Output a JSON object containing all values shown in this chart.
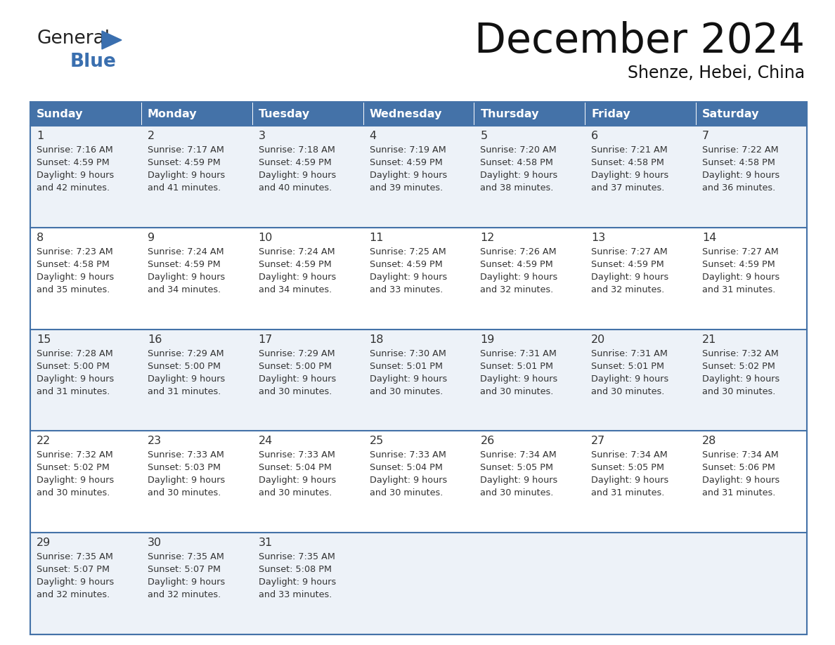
{
  "title": "December 2024",
  "subtitle": "Shenze, Hebei, China",
  "header_color": "#4472a8",
  "header_text_color": "#ffffff",
  "odd_row_bg": "#edf2f8",
  "even_row_bg": "#ffffff",
  "border_color": "#4472a8",
  "text_color": "#333333",
  "day_headers": [
    "Sunday",
    "Monday",
    "Tuesday",
    "Wednesday",
    "Thursday",
    "Friday",
    "Saturday"
  ],
  "calendar_data": [
    [
      {
        "day": 1,
        "sunrise": "7:16 AM",
        "sunset": "4:59 PM",
        "dl1": "Daylight: 9 hours",
        "dl2": "and 42 minutes."
      },
      {
        "day": 2,
        "sunrise": "7:17 AM",
        "sunset": "4:59 PM",
        "dl1": "Daylight: 9 hours",
        "dl2": "and 41 minutes."
      },
      {
        "day": 3,
        "sunrise": "7:18 AM",
        "sunset": "4:59 PM",
        "dl1": "Daylight: 9 hours",
        "dl2": "and 40 minutes."
      },
      {
        "day": 4,
        "sunrise": "7:19 AM",
        "sunset": "4:59 PM",
        "dl1": "Daylight: 9 hours",
        "dl2": "and 39 minutes."
      },
      {
        "day": 5,
        "sunrise": "7:20 AM",
        "sunset": "4:58 PM",
        "dl1": "Daylight: 9 hours",
        "dl2": "and 38 minutes."
      },
      {
        "day": 6,
        "sunrise": "7:21 AM",
        "sunset": "4:58 PM",
        "dl1": "Daylight: 9 hours",
        "dl2": "and 37 minutes."
      },
      {
        "day": 7,
        "sunrise": "7:22 AM",
        "sunset": "4:58 PM",
        "dl1": "Daylight: 9 hours",
        "dl2": "and 36 minutes."
      }
    ],
    [
      {
        "day": 8,
        "sunrise": "7:23 AM",
        "sunset": "4:58 PM",
        "dl1": "Daylight: 9 hours",
        "dl2": "and 35 minutes."
      },
      {
        "day": 9,
        "sunrise": "7:24 AM",
        "sunset": "4:59 PM",
        "dl1": "Daylight: 9 hours",
        "dl2": "and 34 minutes."
      },
      {
        "day": 10,
        "sunrise": "7:24 AM",
        "sunset": "4:59 PM",
        "dl1": "Daylight: 9 hours",
        "dl2": "and 34 minutes."
      },
      {
        "day": 11,
        "sunrise": "7:25 AM",
        "sunset": "4:59 PM",
        "dl1": "Daylight: 9 hours",
        "dl2": "and 33 minutes."
      },
      {
        "day": 12,
        "sunrise": "7:26 AM",
        "sunset": "4:59 PM",
        "dl1": "Daylight: 9 hours",
        "dl2": "and 32 minutes."
      },
      {
        "day": 13,
        "sunrise": "7:27 AM",
        "sunset": "4:59 PM",
        "dl1": "Daylight: 9 hours",
        "dl2": "and 32 minutes."
      },
      {
        "day": 14,
        "sunrise": "7:27 AM",
        "sunset": "4:59 PM",
        "dl1": "Daylight: 9 hours",
        "dl2": "and 31 minutes."
      }
    ],
    [
      {
        "day": 15,
        "sunrise": "7:28 AM",
        "sunset": "5:00 PM",
        "dl1": "Daylight: 9 hours",
        "dl2": "and 31 minutes."
      },
      {
        "day": 16,
        "sunrise": "7:29 AM",
        "sunset": "5:00 PM",
        "dl1": "Daylight: 9 hours",
        "dl2": "and 31 minutes."
      },
      {
        "day": 17,
        "sunrise": "7:29 AM",
        "sunset": "5:00 PM",
        "dl1": "Daylight: 9 hours",
        "dl2": "and 30 minutes."
      },
      {
        "day": 18,
        "sunrise": "7:30 AM",
        "sunset": "5:01 PM",
        "dl1": "Daylight: 9 hours",
        "dl2": "and 30 minutes."
      },
      {
        "day": 19,
        "sunrise": "7:31 AM",
        "sunset": "5:01 PM",
        "dl1": "Daylight: 9 hours",
        "dl2": "and 30 minutes."
      },
      {
        "day": 20,
        "sunrise": "7:31 AM",
        "sunset": "5:01 PM",
        "dl1": "Daylight: 9 hours",
        "dl2": "and 30 minutes."
      },
      {
        "day": 21,
        "sunrise": "7:32 AM",
        "sunset": "5:02 PM",
        "dl1": "Daylight: 9 hours",
        "dl2": "and 30 minutes."
      }
    ],
    [
      {
        "day": 22,
        "sunrise": "7:32 AM",
        "sunset": "5:02 PM",
        "dl1": "Daylight: 9 hours",
        "dl2": "and 30 minutes."
      },
      {
        "day": 23,
        "sunrise": "7:33 AM",
        "sunset": "5:03 PM",
        "dl1": "Daylight: 9 hours",
        "dl2": "and 30 minutes."
      },
      {
        "day": 24,
        "sunrise": "7:33 AM",
        "sunset": "5:04 PM",
        "dl1": "Daylight: 9 hours",
        "dl2": "and 30 minutes."
      },
      {
        "day": 25,
        "sunrise": "7:33 AM",
        "sunset": "5:04 PM",
        "dl1": "Daylight: 9 hours",
        "dl2": "and 30 minutes."
      },
      {
        "day": 26,
        "sunrise": "7:34 AM",
        "sunset": "5:05 PM",
        "dl1": "Daylight: 9 hours",
        "dl2": "and 30 minutes."
      },
      {
        "day": 27,
        "sunrise": "7:34 AM",
        "sunset": "5:05 PM",
        "dl1": "Daylight: 9 hours",
        "dl2": "and 31 minutes."
      },
      {
        "day": 28,
        "sunrise": "7:34 AM",
        "sunset": "5:06 PM",
        "dl1": "Daylight: 9 hours",
        "dl2": "and 31 minutes."
      }
    ],
    [
      {
        "day": 29,
        "sunrise": "7:35 AM",
        "sunset": "5:07 PM",
        "dl1": "Daylight: 9 hours",
        "dl2": "and 32 minutes."
      },
      {
        "day": 30,
        "sunrise": "7:35 AM",
        "sunset": "5:07 PM",
        "dl1": "Daylight: 9 hours",
        "dl2": "and 32 minutes."
      },
      {
        "day": 31,
        "sunrise": "7:35 AM",
        "sunset": "5:08 PM",
        "dl1": "Daylight: 9 hours",
        "dl2": "and 33 minutes."
      },
      null,
      null,
      null,
      null
    ]
  ]
}
